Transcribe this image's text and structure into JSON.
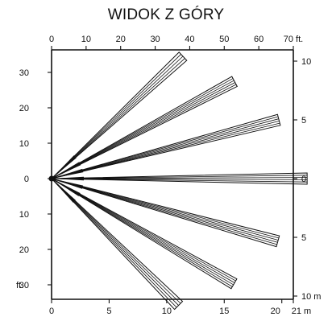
{
  "title": "WIDOK Z GÓRY",
  "top_axis": {
    "ticks": [
      {
        "value": 0,
        "label": "0"
      },
      {
        "value": 10,
        "label": "10"
      },
      {
        "value": 20,
        "label": "20"
      },
      {
        "value": 30,
        "label": "30"
      },
      {
        "value": 40,
        "label": "40"
      },
      {
        "value": 50,
        "label": "50"
      },
      {
        "value": 60,
        "label": "60"
      },
      {
        "value": 70,
        "label": "70 ft."
      }
    ],
    "max": 70
  },
  "bottom_axis": {
    "ticks": [
      {
        "value": 0,
        "label": "0"
      },
      {
        "value": 5,
        "label": "5"
      },
      {
        "value": 10,
        "label": "10"
      },
      {
        "value": 15,
        "label": "15"
      },
      {
        "value": 20,
        "label": "20"
      },
      {
        "value": 21,
        "label": "21 m"
      }
    ],
    "max": 21
  },
  "left_axis": {
    "ticks": [
      {
        "value": 30,
        "label": "30"
      },
      {
        "value": 20,
        "label": "20"
      },
      {
        "value": 10,
        "label": "10"
      },
      {
        "value": 0,
        "label": "0"
      },
      {
        "value": -10,
        "label": "10"
      },
      {
        "value": -20,
        "label": "20"
      },
      {
        "value": -30,
        "label": "30"
      }
    ],
    "unit_label": "ft."
  },
  "right_axis": {
    "ticks": [
      {
        "value": 10,
        "label": "10"
      },
      {
        "value": 5,
        "label": "5"
      },
      {
        "value": 0,
        "label": "0"
      },
      {
        "value": -5,
        "label": "5"
      },
      {
        "value": -10,
        "label": "10 m"
      }
    ]
  },
  "beams": [
    {
      "name": "beam-1",
      "angle_deg": 43.0,
      "length_ft": 52,
      "lines": 4
    },
    {
      "name": "beam-2",
      "angle_deg": 28.0,
      "length_ft": 60,
      "lines": 5
    },
    {
      "name": "beam-3",
      "angle_deg": 14.5,
      "length_ft": 68,
      "lines": 5
    },
    {
      "name": "beam-4",
      "angle_deg": 0.0,
      "length_ft": 74,
      "lines": 5
    },
    {
      "name": "beam-5",
      "angle_deg": -15.5,
      "length_ft": 68,
      "lines": 5
    },
    {
      "name": "beam-6",
      "angle_deg": -30.0,
      "length_ft": 61,
      "lines": 5
    },
    {
      "name": "beam-7",
      "angle_deg": -45.0,
      "length_ft": 52,
      "lines": 4
    }
  ]
}
